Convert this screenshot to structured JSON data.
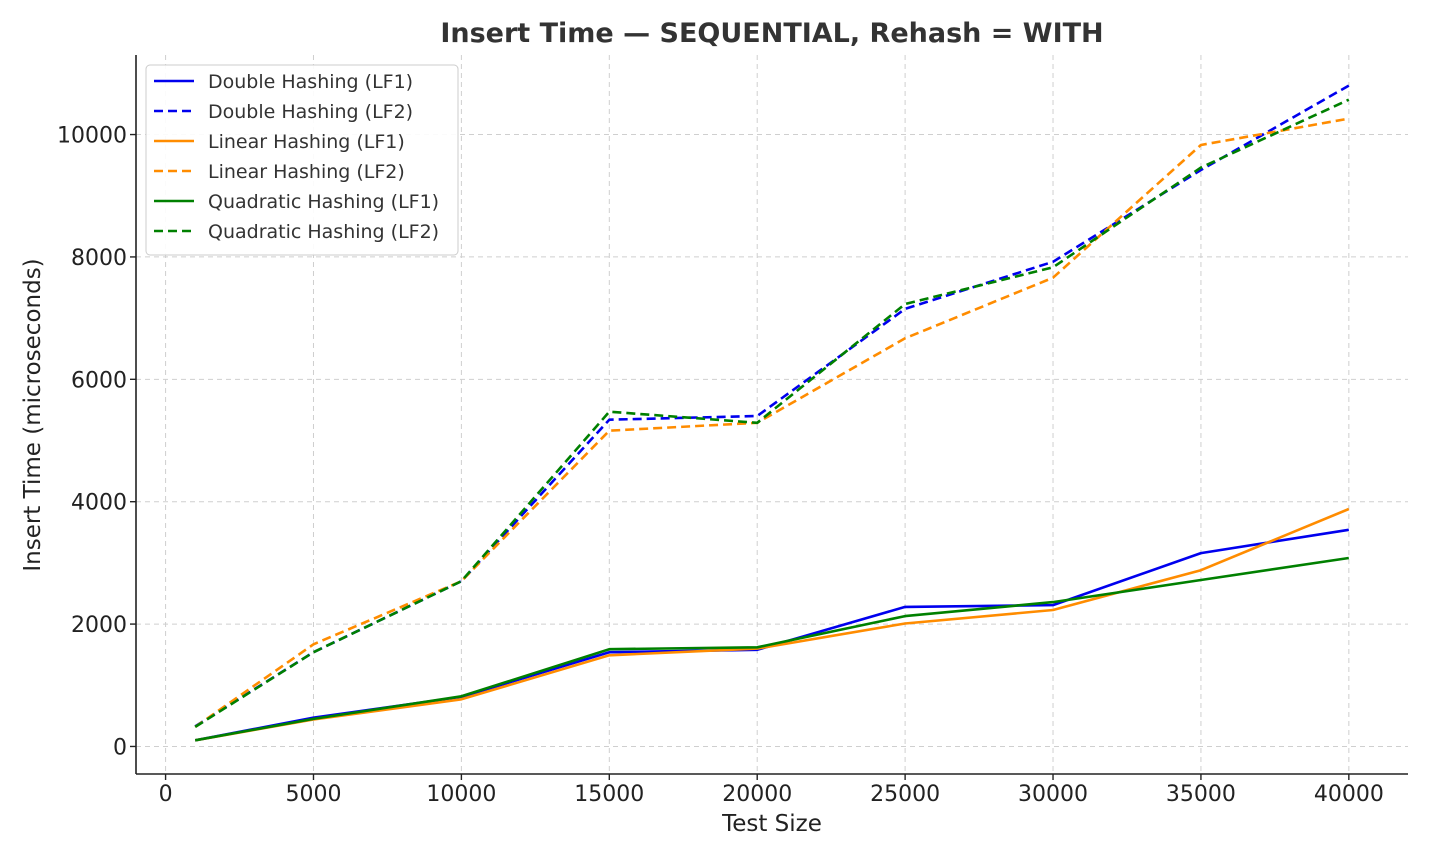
{
  "chart_data": {
    "type": "line",
    "title": "Insert Time — SEQUENTIAL, Rehash = WITH",
    "xlabel": "Test Size",
    "ylabel": "Insert Time (microseconds)",
    "xlim": [
      -1000,
      42000
    ],
    "ylim": [
      -450,
      11300
    ],
    "xticks": [
      0,
      5000,
      10000,
      15000,
      20000,
      25000,
      30000,
      35000,
      40000
    ],
    "yticks": [
      0,
      2000,
      4000,
      6000,
      8000,
      10000
    ],
    "grid": true,
    "legend_position": "top-left",
    "x": [
      1000,
      5000,
      10000,
      15000,
      20000,
      25000,
      30000,
      35000,
      40000
    ],
    "series": [
      {
        "name": "Double Hashing (LF1)",
        "color": "#0000ee",
        "style": "solid",
        "values": [
          100,
          470,
          810,
          1540,
          1580,
          2280,
          2310,
          3160,
          3540
        ]
      },
      {
        "name": "Double Hashing (LF2)",
        "color": "#0000ee",
        "style": "dashed",
        "values": [
          330,
          1540,
          2700,
          5340,
          5400,
          7150,
          7920,
          9420,
          10800
        ]
      },
      {
        "name": "Linear Hashing (LF1)",
        "color": "#ff8c00",
        "style": "solid",
        "values": [
          100,
          440,
          770,
          1490,
          1600,
          2010,
          2230,
          2880,
          3880
        ]
      },
      {
        "name": "Linear Hashing (LF2)",
        "color": "#ff8c00",
        "style": "dashed",
        "values": [
          320,
          1670,
          2700,
          5160,
          5290,
          6670,
          7660,
          9830,
          10260
        ]
      },
      {
        "name": "Quadratic Hashing (LF1)",
        "color": "#008000",
        "style": "solid",
        "values": [
          100,
          450,
          820,
          1590,
          1620,
          2130,
          2360,
          2720,
          3080
        ]
      },
      {
        "name": "Quadratic Hashing (LF2)",
        "color": "#008000",
        "style": "dashed",
        "values": [
          320,
          1540,
          2700,
          5470,
          5290,
          7230,
          7830,
          9460,
          10570
        ]
      }
    ]
  }
}
